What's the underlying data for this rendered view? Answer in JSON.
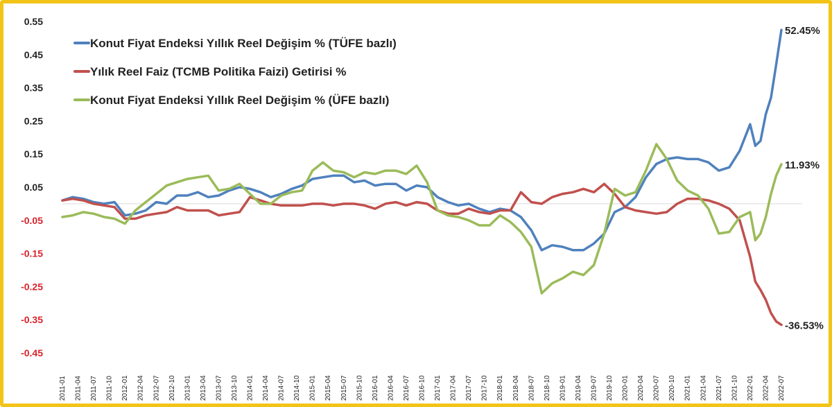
{
  "chart_data": {
    "type": "line",
    "ylim": [
      -0.45,
      0.55
    ],
    "yticks": [
      "0.55",
      "0.45",
      "0.35",
      "0.25",
      "0.15",
      "0.05",
      "-0.05",
      "-0.15",
      "-0.25",
      "-0.35",
      "-0.45"
    ],
    "x_start": "2011-01",
    "x_end": "2022-07",
    "xtick_labels": [
      "2011-01",
      "2011-04",
      "2011-07",
      "2011-10",
      "2012-01",
      "2012-04",
      "2012-07",
      "2012-10",
      "2013-01",
      "2013-04",
      "2013-07",
      "2013-10",
      "2014-01",
      "2014-04",
      "2014-07",
      "2014-10",
      "2015-01",
      "2015-04",
      "2015-07",
      "2015-10",
      "2016-01",
      "2016-04",
      "2016-07",
      "2016-10",
      "2017-01",
      "2017-04",
      "2017-07",
      "2017-10",
      "2018-01",
      "2018-04",
      "2018-07",
      "2018-10",
      "2019-01",
      "2019-04",
      "2019-07",
      "2019-10",
      "2020-01",
      "2020-04",
      "2020-07",
      "2020-10",
      "2021-01",
      "2021-04",
      "2021-07",
      "2021-10",
      "2022-01",
      "2022-04",
      "2022-07"
    ],
    "colors": {
      "positive_tick": "#222222",
      "negative_tick": "#d9232b"
    },
    "legend_placement": "top-left",
    "series": [
      {
        "name": "Konut Fiyat Endeksi Yıllık Reel Değişim % (TÜFE bazlı)",
        "color": "#4f81bd",
        "end_label": "52.45%",
        "points": [
          [
            "2011-01",
            0.01
          ],
          [
            "2011-03",
            0.02
          ],
          [
            "2011-05",
            0.015
          ],
          [
            "2011-07",
            0.005
          ],
          [
            "2011-09",
            0.0
          ],
          [
            "2011-11",
            0.005
          ],
          [
            "2012-01",
            -0.035
          ],
          [
            "2012-03",
            -0.03
          ],
          [
            "2012-05",
            -0.02
          ],
          [
            "2012-07",
            0.005
          ],
          [
            "2012-09",
            0.0
          ],
          [
            "2012-11",
            0.025
          ],
          [
            "2013-01",
            0.025
          ],
          [
            "2013-03",
            0.035
          ],
          [
            "2013-05",
            0.02
          ],
          [
            "2013-07",
            0.025
          ],
          [
            "2013-09",
            0.04
          ],
          [
            "2013-11",
            0.05
          ],
          [
            "2014-01",
            0.045
          ],
          [
            "2014-03",
            0.035
          ],
          [
            "2014-05",
            0.02
          ],
          [
            "2014-07",
            0.03
          ],
          [
            "2014-09",
            0.045
          ],
          [
            "2014-11",
            0.055
          ],
          [
            "2015-01",
            0.075
          ],
          [
            "2015-03",
            0.08
          ],
          [
            "2015-05",
            0.085
          ],
          [
            "2015-07",
            0.085
          ],
          [
            "2015-09",
            0.065
          ],
          [
            "2015-11",
            0.07
          ],
          [
            "2016-01",
            0.055
          ],
          [
            "2016-03",
            0.06
          ],
          [
            "2016-05",
            0.06
          ],
          [
            "2016-07",
            0.04
          ],
          [
            "2016-09",
            0.055
          ],
          [
            "2016-11",
            0.05
          ],
          [
            "2017-01",
            0.02
          ],
          [
            "2017-03",
            0.005
          ],
          [
            "2017-05",
            -0.005
          ],
          [
            "2017-07",
            0.0
          ],
          [
            "2017-09",
            -0.015
          ],
          [
            "2017-11",
            -0.025
          ],
          [
            "2018-01",
            -0.015
          ],
          [
            "2018-03",
            -0.02
          ],
          [
            "2018-05",
            -0.04
          ],
          [
            "2018-07",
            -0.08
          ],
          [
            "2018-09",
            -0.14
          ],
          [
            "2018-11",
            -0.125
          ],
          [
            "2019-01",
            -0.13
          ],
          [
            "2019-03",
            -0.14
          ],
          [
            "2019-05",
            -0.14
          ],
          [
            "2019-07",
            -0.12
          ],
          [
            "2019-09",
            -0.09
          ],
          [
            "2019-11",
            -0.025
          ],
          [
            "2020-01",
            -0.01
          ],
          [
            "2020-03",
            0.02
          ],
          [
            "2020-05",
            0.08
          ],
          [
            "2020-07",
            0.12
          ],
          [
            "2020-09",
            0.135
          ],
          [
            "2020-11",
            0.14
          ],
          [
            "2021-01",
            0.135
          ],
          [
            "2021-03",
            0.135
          ],
          [
            "2021-05",
            0.125
          ],
          [
            "2021-07",
            0.1
          ],
          [
            "2021-09",
            0.11
          ],
          [
            "2021-11",
            0.16
          ],
          [
            "2022-01",
            0.24
          ],
          [
            "2022-02",
            0.175
          ],
          [
            "2022-03",
            0.19
          ],
          [
            "2022-04",
            0.27
          ],
          [
            "2022-05",
            0.32
          ],
          [
            "2022-06",
            0.42
          ],
          [
            "2022-07",
            0.5245
          ]
        ]
      },
      {
        "name": "Yılık Reel Faiz (TCMB Politika Faizi) Getirisi %",
        "color": "#c0504d",
        "end_label": "-36.53%",
        "points": [
          [
            "2011-01",
            0.01
          ],
          [
            "2011-03",
            0.015
          ],
          [
            "2011-05",
            0.01
          ],
          [
            "2011-07",
            0.0
          ],
          [
            "2011-09",
            -0.005
          ],
          [
            "2011-11",
            -0.01
          ],
          [
            "2012-01",
            -0.045
          ],
          [
            "2012-03",
            -0.045
          ],
          [
            "2012-05",
            -0.035
          ],
          [
            "2012-07",
            -0.03
          ],
          [
            "2012-09",
            -0.025
          ],
          [
            "2012-11",
            -0.01
          ],
          [
            "2013-01",
            -0.02
          ],
          [
            "2013-03",
            -0.02
          ],
          [
            "2013-05",
            -0.02
          ],
          [
            "2013-07",
            -0.035
          ],
          [
            "2013-09",
            -0.03
          ],
          [
            "2013-11",
            -0.025
          ],
          [
            "2014-01",
            0.02
          ],
          [
            "2014-03",
            0.01
          ],
          [
            "2014-05",
            0.0
          ],
          [
            "2014-07",
            -0.005
          ],
          [
            "2014-09",
            -0.005
          ],
          [
            "2014-11",
            -0.005
          ],
          [
            "2015-01",
            0.0
          ],
          [
            "2015-03",
            0.0
          ],
          [
            "2015-05",
            -0.005
          ],
          [
            "2015-07",
            0.0
          ],
          [
            "2015-09",
            0.0
          ],
          [
            "2015-11",
            -0.005
          ],
          [
            "2016-01",
            -0.015
          ],
          [
            "2016-03",
            0.0
          ],
          [
            "2016-05",
            0.005
          ],
          [
            "2016-07",
            -0.005
          ],
          [
            "2016-09",
            0.005
          ],
          [
            "2016-11",
            0.0
          ],
          [
            "2017-01",
            -0.02
          ],
          [
            "2017-03",
            -0.03
          ],
          [
            "2017-05",
            -0.03
          ],
          [
            "2017-07",
            -0.015
          ],
          [
            "2017-09",
            -0.025
          ],
          [
            "2017-11",
            -0.03
          ],
          [
            "2018-01",
            -0.02
          ],
          [
            "2018-03",
            -0.02
          ],
          [
            "2018-05",
            0.035
          ],
          [
            "2018-07",
            0.005
          ],
          [
            "2018-09",
            0.0
          ],
          [
            "2018-11",
            0.02
          ],
          [
            "2019-01",
            0.03
          ],
          [
            "2019-03",
            0.035
          ],
          [
            "2019-05",
            0.045
          ],
          [
            "2019-07",
            0.035
          ],
          [
            "2019-09",
            0.06
          ],
          [
            "2019-11",
            0.03
          ],
          [
            "2020-01",
            -0.01
          ],
          [
            "2020-03",
            -0.02
          ],
          [
            "2020-05",
            -0.025
          ],
          [
            "2020-07",
            -0.03
          ],
          [
            "2020-09",
            -0.025
          ],
          [
            "2020-11",
            0.0
          ],
          [
            "2021-01",
            0.015
          ],
          [
            "2021-03",
            0.015
          ],
          [
            "2021-05",
            0.01
          ],
          [
            "2021-07",
            0.0
          ],
          [
            "2021-09",
            -0.015
          ],
          [
            "2021-11",
            -0.05
          ],
          [
            "2022-01",
            -0.16
          ],
          [
            "2022-02",
            -0.235
          ],
          [
            "2022-03",
            -0.26
          ],
          [
            "2022-04",
            -0.29
          ],
          [
            "2022-05",
            -0.33
          ],
          [
            "2022-06",
            -0.355
          ],
          [
            "2022-07",
            -0.3653
          ]
        ]
      },
      {
        "name": "Konut Fiyat Endeksi Yıllık Reel Değişim % (ÜFE bazlı)",
        "color": "#9bbb59",
        "end_label": "11.93%",
        "points": [
          [
            "2011-01",
            -0.04
          ],
          [
            "2011-03",
            -0.035
          ],
          [
            "2011-05",
            -0.025
          ],
          [
            "2011-07",
            -0.03
          ],
          [
            "2011-09",
            -0.04
          ],
          [
            "2011-11",
            -0.045
          ],
          [
            "2012-01",
            -0.06
          ],
          [
            "2012-03",
            -0.02
          ],
          [
            "2012-05",
            0.005
          ],
          [
            "2012-07",
            0.03
          ],
          [
            "2012-09",
            0.055
          ],
          [
            "2012-11",
            0.065
          ],
          [
            "2013-01",
            0.075
          ],
          [
            "2013-03",
            0.08
          ],
          [
            "2013-05",
            0.085
          ],
          [
            "2013-07",
            0.04
          ],
          [
            "2013-09",
            0.045
          ],
          [
            "2013-11",
            0.06
          ],
          [
            "2014-01",
            0.03
          ],
          [
            "2014-03",
            0.0
          ],
          [
            "2014-05",
            0.0
          ],
          [
            "2014-07",
            0.025
          ],
          [
            "2014-09",
            0.035
          ],
          [
            "2014-11",
            0.04
          ],
          [
            "2015-01",
            0.1
          ],
          [
            "2015-03",
            0.125
          ],
          [
            "2015-05",
            0.1
          ],
          [
            "2015-07",
            0.095
          ],
          [
            "2015-09",
            0.08
          ],
          [
            "2015-11",
            0.095
          ],
          [
            "2016-01",
            0.09
          ],
          [
            "2016-03",
            0.1
          ],
          [
            "2016-05",
            0.1
          ],
          [
            "2016-07",
            0.09
          ],
          [
            "2016-09",
            0.115
          ],
          [
            "2016-11",
            0.065
          ],
          [
            "2017-01",
            -0.02
          ],
          [
            "2017-03",
            -0.035
          ],
          [
            "2017-05",
            -0.04
          ],
          [
            "2017-07",
            -0.05
          ],
          [
            "2017-09",
            -0.065
          ],
          [
            "2017-11",
            -0.065
          ],
          [
            "2018-01",
            -0.035
          ],
          [
            "2018-03",
            -0.055
          ],
          [
            "2018-05",
            -0.085
          ],
          [
            "2018-07",
            -0.13
          ],
          [
            "2018-09",
            -0.27
          ],
          [
            "2018-11",
            -0.24
          ],
          [
            "2019-01",
            -0.225
          ],
          [
            "2019-03",
            -0.205
          ],
          [
            "2019-05",
            -0.215
          ],
          [
            "2019-07",
            -0.185
          ],
          [
            "2019-09",
            -0.09
          ],
          [
            "2019-11",
            0.045
          ],
          [
            "2020-01",
            0.025
          ],
          [
            "2020-03",
            0.035
          ],
          [
            "2020-05",
            0.1
          ],
          [
            "2020-07",
            0.18
          ],
          [
            "2020-09",
            0.135
          ],
          [
            "2020-11",
            0.07
          ],
          [
            "2021-01",
            0.04
          ],
          [
            "2021-03",
            0.025
          ],
          [
            "2021-05",
            -0.015
          ],
          [
            "2021-07",
            -0.09
          ],
          [
            "2021-09",
            -0.085
          ],
          [
            "2021-11",
            -0.04
          ],
          [
            "2022-01",
            -0.025
          ],
          [
            "2022-02",
            -0.11
          ],
          [
            "2022-03",
            -0.09
          ],
          [
            "2022-04",
            -0.04
          ],
          [
            "2022-05",
            0.03
          ],
          [
            "2022-06",
            0.085
          ],
          [
            "2022-07",
            0.1193
          ]
        ]
      }
    ]
  }
}
